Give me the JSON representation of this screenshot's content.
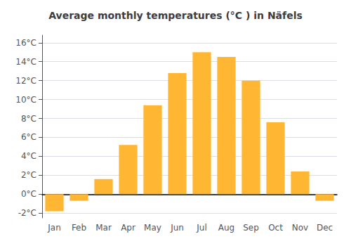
{
  "chart_data": {
    "type": "bar",
    "title": "Average monthly temperatures (°C ) in Näfels",
    "categories": [
      "Jan",
      "Feb",
      "Mar",
      "Apr",
      "May",
      "Jun",
      "Jul",
      "Aug",
      "Sep",
      "Oct",
      "Nov",
      "Dec"
    ],
    "values": [
      -1.8,
      -0.7,
      1.6,
      5.2,
      9.4,
      12.8,
      15.0,
      14.5,
      12.0,
      7.6,
      2.4,
      -0.7
    ],
    "color": "#FFB733",
    "ylim": [
      -2.5,
      16.8
    ],
    "yticks": [
      {
        "value": -2,
        "label": "-2°C"
      },
      {
        "value": 0,
        "label": "0°C"
      },
      {
        "value": 2,
        "label": "2°C"
      },
      {
        "value": 4,
        "label": "4°C"
      },
      {
        "value": 6,
        "label": "6°C"
      },
      {
        "value": 8,
        "label": "8°C"
      },
      {
        "value": 10,
        "label": "10°C"
      },
      {
        "value": 12,
        "label": "12°C"
      },
      {
        "value": 14,
        "label": "14°C"
      },
      {
        "value": 16,
        "label": "16°C"
      }
    ],
    "grid": true
  }
}
